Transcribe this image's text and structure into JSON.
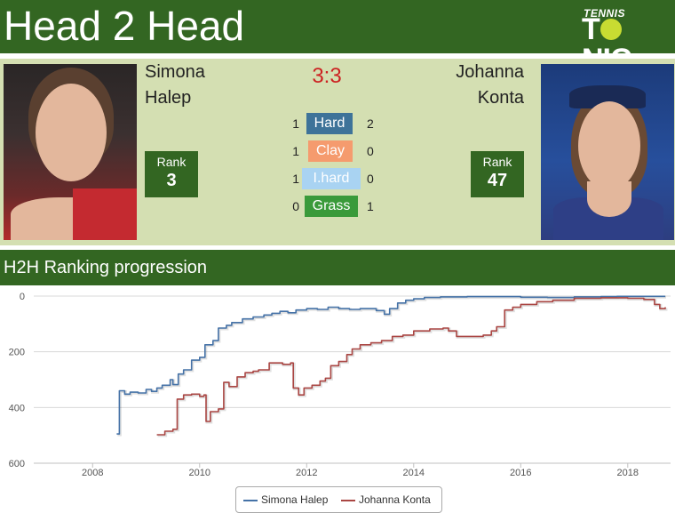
{
  "header": {
    "title": "Head 2 Head",
    "logo_top": "TENNIS",
    "logo_left": "T",
    "logo_right": "NIC"
  },
  "players": {
    "left": {
      "first": "Simona",
      "last": "Halep",
      "rank_label": "Rank",
      "rank": "3",
      "color": "#4572a7"
    },
    "right": {
      "first": "Johanna",
      "last": "Konta",
      "rank_label": "Rank",
      "rank": "47",
      "color": "#aa4643"
    }
  },
  "score": "3:3",
  "surfaces": [
    {
      "name": "Hard",
      "left": "1",
      "right": "2",
      "color": "#3e7399"
    },
    {
      "name": "Clay",
      "left": "1",
      "right": "0",
      "color": "#f59b6e"
    },
    {
      "name": "I.hard",
      "left": "1",
      "right": "0",
      "color": "#a9d3f2"
    },
    {
      "name": "Grass",
      "left": "0",
      "right": "1",
      "color": "#3a9a3a"
    }
  ],
  "section_title": "H2H Ranking progression",
  "chart_data": {
    "type": "line",
    "title": "",
    "xlabel": "",
    "ylabel": "",
    "xlim": [
      2006.9,
      2018.8
    ],
    "ylim": [
      0,
      600
    ],
    "y_reversed": true,
    "x_ticks": [
      "2008",
      "2010",
      "2012",
      "2014",
      "2016",
      "2018"
    ],
    "y_ticks": [
      "0",
      "200",
      "400",
      "600"
    ],
    "legend_position": "bottom-center",
    "grid": "horizontal",
    "series": [
      {
        "name": "Simona Halep",
        "color": "#4572a7",
        "points": [
          [
            2008.45,
            495
          ],
          [
            2008.5,
            340
          ],
          [
            2008.6,
            352
          ],
          [
            2008.7,
            345
          ],
          [
            2008.85,
            348
          ],
          [
            2009.0,
            335
          ],
          [
            2009.1,
            342
          ],
          [
            2009.2,
            330
          ],
          [
            2009.3,
            320
          ],
          [
            2009.45,
            300
          ],
          [
            2009.5,
            318
          ],
          [
            2009.6,
            280
          ],
          [
            2009.7,
            265
          ],
          [
            2009.85,
            230
          ],
          [
            2010.0,
            220
          ],
          [
            2010.1,
            175
          ],
          [
            2010.25,
            160
          ],
          [
            2010.35,
            115
          ],
          [
            2010.5,
            105
          ],
          [
            2010.6,
            95
          ],
          [
            2010.8,
            82
          ],
          [
            2011.0,
            75
          ],
          [
            2011.2,
            68
          ],
          [
            2011.35,
            62
          ],
          [
            2011.5,
            55
          ],
          [
            2011.65,
            60
          ],
          [
            2011.8,
            50
          ],
          [
            2012.0,
            45
          ],
          [
            2012.2,
            48
          ],
          [
            2012.4,
            40
          ],
          [
            2012.6,
            45
          ],
          [
            2012.8,
            48
          ],
          [
            2013.0,
            45
          ],
          [
            2013.3,
            52
          ],
          [
            2013.45,
            65
          ],
          [
            2013.55,
            45
          ],
          [
            2013.7,
            25
          ],
          [
            2013.85,
            15
          ],
          [
            2014.0,
            10
          ],
          [
            2014.2,
            5
          ],
          [
            2014.5,
            3
          ],
          [
            2015.0,
            2
          ],
          [
            2015.5,
            2
          ],
          [
            2016.0,
            4
          ],
          [
            2016.5,
            5
          ],
          [
            2017.0,
            3
          ],
          [
            2017.5,
            2
          ],
          [
            2017.8,
            1
          ],
          [
            2018.0,
            1
          ],
          [
            2018.4,
            1
          ],
          [
            2018.7,
            1
          ]
        ]
      },
      {
        "name": "Johanna Konta",
        "color": "#aa4643",
        "points": [
          [
            2009.2,
            498
          ],
          [
            2009.35,
            485
          ],
          [
            2009.5,
            478
          ],
          [
            2009.58,
            370
          ],
          [
            2009.7,
            355
          ],
          [
            2009.85,
            352
          ],
          [
            2010.0,
            360
          ],
          [
            2010.08,
            355
          ],
          [
            2010.12,
            450
          ],
          [
            2010.2,
            415
          ],
          [
            2010.35,
            405
          ],
          [
            2010.45,
            310
          ],
          [
            2010.55,
            325
          ],
          [
            2010.7,
            290
          ],
          [
            2010.85,
            275
          ],
          [
            2011.0,
            270
          ],
          [
            2011.1,
            265
          ],
          [
            2011.3,
            240
          ],
          [
            2011.55,
            245
          ],
          [
            2011.7,
            240
          ],
          [
            2011.75,
            330
          ],
          [
            2011.85,
            355
          ],
          [
            2011.95,
            330
          ],
          [
            2012.1,
            320
          ],
          [
            2012.25,
            305
          ],
          [
            2012.35,
            295
          ],
          [
            2012.45,
            250
          ],
          [
            2012.6,
            235
          ],
          [
            2012.75,
            210
          ],
          [
            2012.85,
            190
          ],
          [
            2013.0,
            175
          ],
          [
            2013.2,
            168
          ],
          [
            2013.4,
            160
          ],
          [
            2013.6,
            145
          ],
          [
            2013.8,
            140
          ],
          [
            2014.0,
            125
          ],
          [
            2014.3,
            118
          ],
          [
            2014.55,
            115
          ],
          [
            2014.65,
            125
          ],
          [
            2014.8,
            145
          ],
          [
            2015.0,
            145
          ],
          [
            2015.3,
            140
          ],
          [
            2015.45,
            125
          ],
          [
            2015.55,
            110
          ],
          [
            2015.7,
            50
          ],
          [
            2015.85,
            40
          ],
          [
            2016.0,
            30
          ],
          [
            2016.3,
            20
          ],
          [
            2016.6,
            15
          ],
          [
            2017.0,
            8
          ],
          [
            2017.5,
            6
          ],
          [
            2018.0,
            8
          ],
          [
            2018.3,
            12
          ],
          [
            2018.5,
            30
          ],
          [
            2018.6,
            45
          ],
          [
            2018.7,
            40
          ]
        ]
      }
    ]
  }
}
